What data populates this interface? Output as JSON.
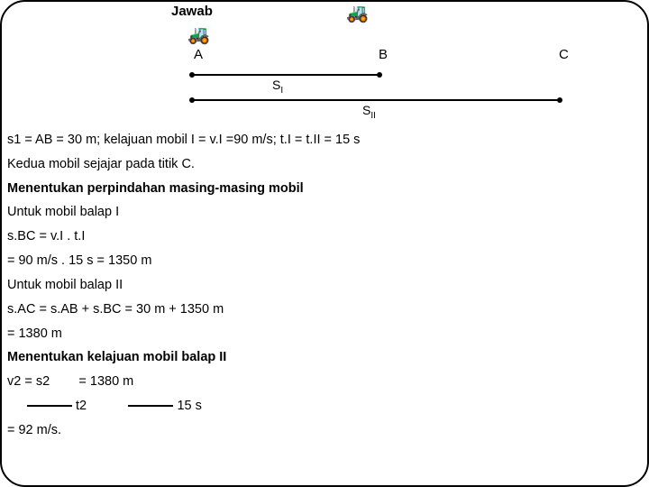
{
  "header": {
    "title": "Jawab",
    "carGlyph": "🚜",
    "points": {
      "A": "A",
      "B": "B",
      "C": "C"
    },
    "segment1": "S",
    "segment1sub": "I",
    "segment2": "S",
    "segment2sub": "II"
  },
  "lines": {
    "l1": "s1 = AB = 30 m; kelajuan mobil I = v.I =90 m/s; t.I = t.II = 15 s",
    "l2": "Kedua mobil sejajar pada titik C.",
    "l3": "Menentukan perpindahan masing-masing mobil",
    "l4": "Untuk mobil balap I",
    "l5": "s.BC = v.I . t.I",
    "l6": "= 90 m/s . 15 s = 1350 m",
    "l7": "Untuk mobil balap II",
    "l8": "s.AC = s.AB + s.BC = 30 m + 1350 m",
    "l9": "= 1380 m",
    "l10": "Menentukan kelajuan mobil balap II",
    "l11a": "v2 = s2",
    "l11b": "= 1380 m",
    "l12a": "t2",
    "l12b": "15 s",
    "l13": "= 92 m/s."
  }
}
